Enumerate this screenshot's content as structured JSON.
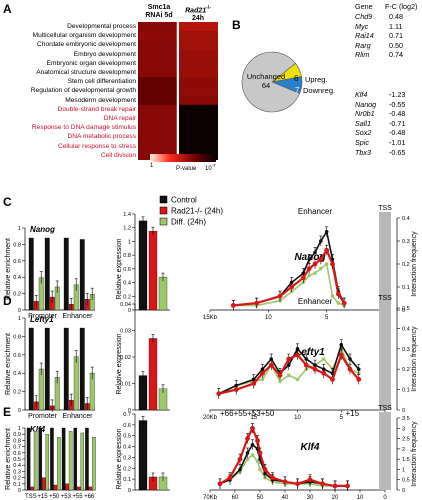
{
  "panels": {
    "A": "A",
    "B": "B",
    "C": "C",
    "D": "D",
    "E": "E"
  },
  "heatmap": {
    "col_headers": [
      [
        "Smc1a",
        "RNAi 5d"
      ],
      [
        "Rad21",
        "24h"
      ]
    ],
    "rad21_sup": "-/-",
    "rows": [
      {
        "label": "Developmental process",
        "color": "black",
        "v": [
          0.62,
          0.5
        ]
      },
      {
        "label": "Multicellular organism development",
        "color": "black",
        "v": [
          0.6,
          0.55
        ]
      },
      {
        "label": "Chordate embryonic development",
        "color": "black",
        "v": [
          0.62,
          0.55
        ]
      },
      {
        "label": "Embryo development",
        "color": "black",
        "v": [
          0.62,
          0.57
        ]
      },
      {
        "label": "Embryonic organ development",
        "color": "black",
        "v": [
          0.62,
          0.58
        ]
      },
      {
        "label": "Anatomical structure development",
        "color": "black",
        "v": [
          0.62,
          0.57
        ]
      },
      {
        "label": "Stem cell differentiation",
        "color": "black",
        "v": [
          0.72,
          0.6
        ]
      },
      {
        "label": "Regulation of developmental growth",
        "color": "black",
        "v": [
          0.72,
          0.6
        ]
      },
      {
        "label": "Mesoderm development",
        "color": "black",
        "v": [
          0.72,
          0.62
        ]
      },
      {
        "label": "Double-strand break repair",
        "color": "red",
        "v": [
          0.62,
          0.98
        ]
      },
      {
        "label": "DNA repair",
        "color": "red",
        "v": [
          0.62,
          0.98
        ]
      },
      {
        "label": "Response to DNA damage stimulus",
        "color": "red",
        "v": [
          0.62,
          0.98
        ]
      },
      {
        "label": "DNA metabolic process",
        "color": "red",
        "v": [
          0.62,
          0.98
        ]
      },
      {
        "label": "Cellular response to stress",
        "color": "red",
        "v": [
          0.62,
          0.98
        ]
      },
      {
        "label": "Cell division",
        "color": "red",
        "v": [
          0.62,
          0.98
        ]
      }
    ],
    "scale_min": "1",
    "scale_max": "10",
    "scale_max_exp": "-7",
    "scale_label": "P-value"
  },
  "pie": {
    "unchanged_label": "Unchanged",
    "unchanged_value": "64",
    "up_value": "6",
    "down_value": "7",
    "up_label": "Upreg.",
    "down_label": "Downreg.",
    "colors": {
      "unchanged": "#c8c8c8",
      "up": "#f0e000",
      "down": "#2a7fc8"
    }
  },
  "genes": {
    "header_gene": "Gene",
    "header_fc": "F-C (log2)",
    "up": [
      [
        "Chd9",
        "0.48"
      ],
      [
        "Myc",
        "1.11"
      ],
      [
        "Rai14",
        "0.71"
      ],
      [
        "Rarg",
        "0.50"
      ],
      [
        "Rlim",
        "0.74"
      ]
    ],
    "down": [
      [
        "Klf4",
        "-1.23"
      ],
      [
        "Nanog",
        "-0.55"
      ],
      [
        "Nr0b1",
        "-0.48"
      ],
      [
        "Sall1",
        "-0.71"
      ],
      [
        "Sox2",
        "-0.48"
      ],
      [
        "Spic",
        "-1.01"
      ],
      [
        "Tbx3",
        "-0.65"
      ]
    ]
  },
  "legend": {
    "items": [
      {
        "label": "Control",
        "color": "#111111"
      },
      {
        "label": "Rad21-/- (24h)",
        "color": "#d81818"
      },
      {
        "label": "Diff. (24h)",
        "color": "#9cc86a"
      }
    ]
  },
  "labels": {
    "rel_enrichment": "Relative enrichment",
    "rel_expression": "Relative expression",
    "interaction_frequency": "Interaction frequency",
    "enhancer": "Enhancer",
    "tss": "TSS",
    "promoter": "Promoter"
  },
  "rows": [
    {
      "id": "C",
      "gene": "Nanog",
      "chip": {
        "yticks": [
          "0",
          "0.2",
          "0.4",
          "0.6",
          "0.8",
          "1"
        ],
        "groups": [
          "Promoter",
          "Enhancer"
        ]
      },
      "expr": {
        "yticks": [
          "0",
          "0.2",
          "0.4",
          "0.6",
          "0.8",
          "1",
          "1.2",
          "1.4"
        ]
      },
      "c3": {
        "yticks": [
          "0",
          "0.1",
          "0.2",
          "0.3",
          "0.4"
        ],
        "xticks": [
          "15Kb",
          "10",
          "5",
          "0"
        ],
        "top": [
          "Enhancer"
        ]
      }
    },
    {
      "id": "D",
      "gene": "Lefty1",
      "chip": {
        "yticks": [
          "0",
          "0.2",
          "0.4",
          "0.6",
          "0.8",
          "1"
        ],
        "groups": [
          "Promoter",
          "Enhancer"
        ]
      },
      "expr": {
        "yticks": [
          "0",
          "0.01",
          "0.02",
          "0.03",
          "0.04"
        ]
      },
      "c3": {
        "yticks": [
          "0",
          "0.1",
          "0.2",
          "0.3",
          "0.4",
          "0.5"
        ],
        "xticks": [
          "20Kb",
          "15",
          "10",
          "5",
          "0"
        ],
        "top": [
          "Enhancer"
        ]
      }
    },
    {
      "id": "E",
      "gene": "Klf4",
      "chip": {
        "yticks": [
          "0",
          "0.1",
          "0.2",
          "0.3",
          "0.4",
          "0.5",
          "0.6",
          "0.7",
          "0.8",
          "0.9",
          "1"
        ],
        "groups": [
          "TSS",
          "+15",
          "+50",
          "+53",
          "+55",
          "+66"
        ]
      },
      "expr": {
        "yticks": [
          "0",
          "0.1",
          "0.2",
          "0.3",
          "0.4",
          "0.5",
          "0.6",
          "0.7"
        ]
      },
      "c3": {
        "yticks": [
          "0",
          "0.5",
          "1",
          "1.5",
          "2",
          "2.5",
          "3",
          "3.5"
        ],
        "xticks": [
          "70Kb",
          "60",
          "50",
          "40",
          "30",
          "20",
          "10",
          "0"
        ],
        "top": [
          "+66",
          "+55",
          "+53",
          "+50",
          "+15"
        ]
      }
    }
  ],
  "chart_data": [
    {
      "type": "heatmap",
      "panel": "A",
      "columns": [
        "Smc1a RNAi 5d",
        "Rad21-/- 24h"
      ],
      "rows": [
        "Developmental process",
        "Multicellular organism development",
        "Chordate embryonic development",
        "Embryo development",
        "Embryonic organ development",
        "Anatomical structure development",
        "Stem cell differentiation",
        "Regulation of developmental growth",
        "Mesoderm development",
        "Double-strand break repair",
        "DNA repair",
        "Response to DNA damage stimulus",
        "DNA metabolic process",
        "Cellular response to stress",
        "Cell division"
      ],
      "scale": [
        "1",
        "10^-7"
      ],
      "scale_label": "P-value"
    },
    {
      "type": "pie",
      "panel": "B",
      "categories": [
        "Unchanged",
        "Upreg.",
        "Downreg."
      ],
      "values": [
        64,
        6,
        7
      ]
    },
    {
      "type": "bar",
      "panel": "C-chip",
      "ylabel": "Relative enrichment",
      "ylim": [
        0,
        1
      ],
      "groups": [
        "Promoter",
        "Enhancer"
      ],
      "series": [
        {
          "name": "Control",
          "values": [
            [
              1.0,
              1.0
            ],
            [
              1.0,
              0.98
            ]
          ]
        },
        {
          "name": "Rad21-/- (24h)",
          "values": [
            [
              0.12,
              0.18
            ],
            [
              0.08,
              0.15
            ]
          ]
        },
        {
          "name": "Diff. (24h)",
          "values": [
            [
              0.45,
              0.32
            ],
            [
              0.35,
              0.22
            ]
          ]
        }
      ]
    },
    {
      "type": "bar",
      "panel": "C-expr",
      "ylabel": "Relative expression",
      "ylim": [
        0,
        1.4
      ],
      "series": [
        {
          "name": "Control",
          "values": [
            1.3
          ]
        },
        {
          "name": "Rad21-/- (24h)",
          "values": [
            1.15
          ]
        },
        {
          "name": "Diff. (24h)",
          "values": [
            0.48
          ]
        }
      ]
    },
    {
      "type": "line",
      "panel": "C-3C",
      "xlabel": "Kb",
      "ylabel": "Interaction frequency",
      "xlim": [
        15,
        0
      ],
      "ylim": [
        0,
        0.4
      ],
      "x": [
        13,
        11,
        9,
        8,
        7,
        6.5,
        6,
        5.5,
        5,
        4.5,
        4,
        3.5
      ],
      "series": [
        {
          "name": "Control",
          "values": [
            0.02,
            0.03,
            0.06,
            0.12,
            0.16,
            0.22,
            0.25,
            0.3,
            0.34,
            0.22,
            0.08,
            0.03
          ]
        },
        {
          "name": "Rad21-/- (24h)",
          "values": [
            0.02,
            0.03,
            0.06,
            0.1,
            0.14,
            0.18,
            0.2,
            0.22,
            0.26,
            0.2,
            0.07,
            0.03
          ]
        },
        {
          "name": "Diff. (24h)",
          "values": [
            0.02,
            0.02,
            0.04,
            0.08,
            0.12,
            0.15,
            0.16,
            0.18,
            0.2,
            0.06,
            0.03,
            0.02
          ]
        }
      ]
    },
    {
      "type": "bar",
      "panel": "D-chip",
      "ylabel": "Relative enrichment",
      "ylim": [
        0,
        1
      ],
      "groups": [
        "Promoter",
        "Enhancer"
      ],
      "series": [
        {
          "name": "Control",
          "values": [
            [
              1.0,
              1.0
            ],
            [
              1.0,
              1.0
            ]
          ]
        },
        {
          "name": "Rad21-/- (24h)",
          "values": [
            [
              0.1,
              0.05
            ],
            [
              0.12,
              0.08
            ]
          ]
        },
        {
          "name": "Diff. (24h)",
          "values": [
            [
              0.5,
              0.4
            ],
            [
              0.65,
              0.45
            ]
          ]
        }
      ]
    },
    {
      "type": "bar",
      "panel": "D-expr",
      "ylabel": "Relative expression",
      "ylim": [
        0,
        0.04
      ],
      "series": [
        {
          "name": "Control",
          "values": [
            0.013
          ]
        },
        {
          "name": "Rad21-/- (24h)",
          "values": [
            0.027
          ]
        },
        {
          "name": "Diff. (24h)",
          "values": [
            0.008
          ]
        }
      ]
    },
    {
      "type": "line",
      "panel": "D-3C",
      "xlabel": "Kb",
      "ylabel": "Interaction frequency",
      "xlim": [
        20,
        0
      ],
      "ylim": [
        0,
        0.5
      ],
      "x": [
        19,
        17,
        15,
        14,
        13,
        12,
        11,
        10,
        9,
        8,
        7,
        6,
        5,
        4,
        3
      ],
      "series": [
        {
          "name": "Control",
          "values": [
            0.08,
            0.12,
            0.15,
            0.2,
            0.25,
            0.18,
            0.22,
            0.3,
            0.25,
            0.22,
            0.2,
            0.18,
            0.32,
            0.25,
            0.2
          ]
        },
        {
          "name": "Rad21-/- (24h)",
          "values": [
            0.08,
            0.1,
            0.13,
            0.18,
            0.22,
            0.17,
            0.25,
            0.27,
            0.22,
            0.2,
            0.18,
            0.15,
            0.27,
            0.2,
            0.15
          ]
        },
        {
          "name": "Diff. (24h)",
          "values": [
            0.08,
            0.12,
            0.14,
            0.15,
            0.22,
            0.14,
            0.17,
            0.15,
            0.2,
            0.22,
            0.25,
            0.2,
            0.3,
            0.2,
            0.18
          ]
        }
      ]
    },
    {
      "type": "bar",
      "panel": "E-chip",
      "ylabel": "Relative enrichment",
      "ylim": [
        0,
        1
      ],
      "groups": [
        "TSS",
        "+15",
        "+50",
        "+53",
        "+55",
        "+66"
      ],
      "series": [
        {
          "name": "Control",
          "values": [
            1.0,
            1.0,
            1.0,
            1.0,
            1.0,
            1.0
          ]
        },
        {
          "name": "Rad21-/- (24h)",
          "values": [
            0.05,
            0.2,
            0.08,
            0.1,
            0.05,
            0.05
          ]
        },
        {
          "name": "Diff. (24h)",
          "values": [
            0.95,
            0.9,
            0.85,
            0.95,
            0.92,
            0.85
          ]
        }
      ]
    },
    {
      "type": "bar",
      "panel": "E-expr",
      "ylabel": "Relative expression",
      "ylim": [
        0,
        0.7
      ],
      "series": [
        {
          "name": "Control",
          "values": [
            0.64
          ]
        },
        {
          "name": "Rad21-/- (24h)",
          "values": [
            0.12
          ]
        },
        {
          "name": "Diff. (24h)",
          "values": [
            0.12
          ]
        }
      ]
    },
    {
      "type": "line",
      "panel": "E-3C",
      "xlabel": "Kb",
      "ylabel": "Interaction frequency",
      "xlim": [
        70,
        0
      ],
      "ylim": [
        0,
        3.5
      ],
      "x": [
        66,
        62,
        58,
        55,
        53,
        51,
        50,
        48,
        45,
        40,
        35,
        30,
        25,
        20,
        15
      ],
      "series": [
        {
          "name": "Control",
          "values": [
            0.3,
            0.5,
            1.0,
            1.8,
            2.2,
            2.0,
            1.5,
            0.8,
            0.5,
            0.4,
            0.3,
            0.4,
            0.3,
            0.2,
            0.2
          ]
        },
        {
          "name": "Rad21-/- (24h)",
          "values": [
            0.3,
            0.6,
            1.5,
            2.5,
            3.0,
            2.4,
            1.8,
            1.0,
            0.6,
            0.4,
            0.3,
            0.5,
            0.3,
            0.2,
            0.2
          ]
        },
        {
          "name": "Diff. (24h)",
          "values": [
            0.3,
            0.5,
            0.9,
            1.5,
            1.7,
            1.4,
            1.0,
            0.6,
            0.4,
            0.3,
            0.3,
            0.3,
            0.2,
            0.2,
            0.2
          ]
        }
      ]
    }
  ]
}
